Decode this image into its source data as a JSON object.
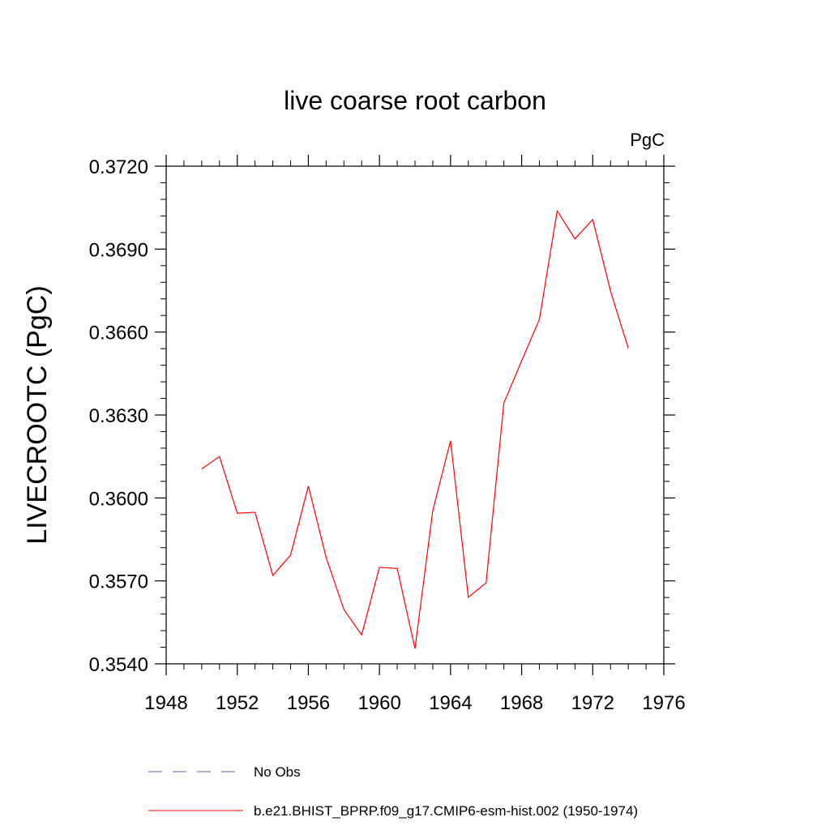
{
  "chart_data": {
    "type": "line",
    "title": "live coarse root carbon",
    "units_label": "PgC",
    "xlabel": "",
    "ylabel": "LIVECROOTC  (PgC)",
    "xlim": [
      1948,
      1976
    ],
    "ylim": [
      0.354,
      0.372
    ],
    "x_ticks": [
      1948,
      1952,
      1956,
      1960,
      1964,
      1968,
      1972,
      1976
    ],
    "x_tick_labels": [
      "1948",
      "1952",
      "1956",
      "1960",
      "1964",
      "1968",
      "1972",
      "1976"
    ],
    "y_ticks": [
      0.354,
      0.357,
      0.36,
      0.363,
      0.366,
      0.369,
      0.372
    ],
    "y_tick_labels": [
      "0.3540",
      "0.3570",
      "0.3600",
      "0.3630",
      "0.3660",
      "0.3690",
      "0.3720"
    ],
    "series": [
      {
        "name": "b.e21.BHIST_BPRP.f09_g17.CMIP6-esm-hist.002 (1950-1974)",
        "color": "#ff0000",
        "style": "solid",
        "x": [
          1950,
          1951,
          1952,
          1953,
          1954,
          1955,
          1956,
          1957,
          1958,
          1959,
          1960,
          1961,
          1962,
          1963,
          1964,
          1965,
          1966,
          1967,
          1968,
          1969,
          1970,
          1971,
          1972,
          1973,
          1974
        ],
        "y": [
          0.36105,
          0.3615,
          0.35945,
          0.35948,
          0.3572,
          0.35793,
          0.36043,
          0.35785,
          0.35596,
          0.35505,
          0.35749,
          0.35745,
          0.35455,
          0.35954,
          0.36207,
          0.35641,
          0.35693,
          0.36343,
          0.36496,
          0.36646,
          0.37038,
          0.36937,
          0.37007,
          0.36748,
          0.36542
        ]
      }
    ],
    "legend": [
      {
        "label": "No Obs",
        "color": "#5b5bb5",
        "style": "dashed"
      },
      {
        "label": "b.e21.BHIST_BPRP.f09_g17.CMIP6-esm-hist.002 (1950-1974)",
        "color": "#ff0000",
        "style": "solid"
      }
    ],
    "legend_position": "bottom",
    "grid": false
  }
}
